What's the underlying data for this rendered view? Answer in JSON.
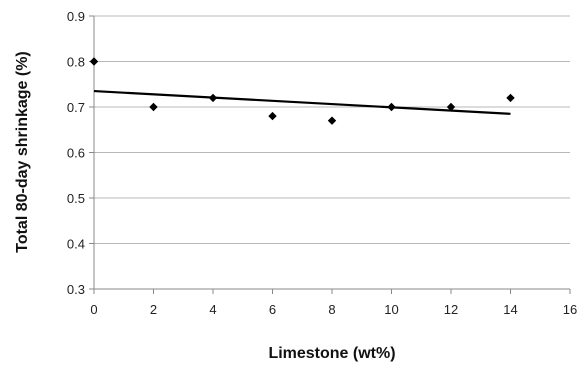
{
  "chart_data": {
    "type": "scatter",
    "title": "",
    "xlabel": "Limestone (wt%)",
    "ylabel": "Total 80-day shrinkage (%)",
    "xlim": [
      0,
      16
    ],
    "ylim": [
      0.3,
      0.9
    ],
    "x_ticks": [
      "0",
      "2",
      "4",
      "6",
      "8",
      "10",
      "12",
      "14",
      "16"
    ],
    "y_ticks": [
      "0.3",
      "0.4",
      "0.5",
      "0.6",
      "0.7",
      "0.8",
      "0.9"
    ],
    "grid": "horizontal",
    "legend": "none",
    "marker": "diamond",
    "series": [
      {
        "x": [
          0,
          2,
          4,
          6,
          8,
          10,
          12,
          14
        ],
        "y": [
          0.8,
          0.7,
          0.72,
          0.68,
          0.67,
          0.7,
          0.7,
          0.72
        ]
      }
    ],
    "trendline": {
      "type": "linear",
      "x": [
        0,
        14
      ],
      "y": [
        0.735,
        0.685
      ]
    },
    "colors": {
      "marker": "#000000",
      "trendline": "#000000",
      "grid": "#b8b8b8",
      "axis": "#888888"
    }
  }
}
